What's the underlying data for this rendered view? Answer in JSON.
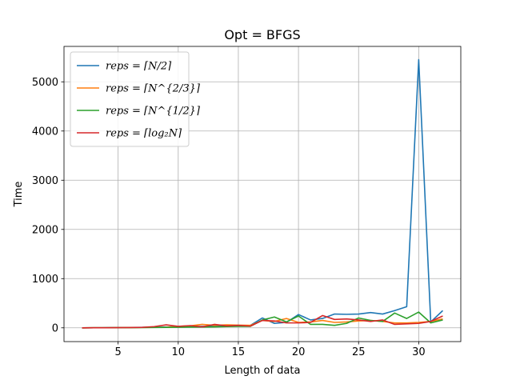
{
  "chart_data": {
    "type": "line",
    "title": "Opt = BFGS",
    "xlabel": "Length of data",
    "ylabel": "Time",
    "xlim": [
      0.5,
      33.5
    ],
    "ylim": [
      -280,
      5720
    ],
    "xticks": [
      5,
      10,
      15,
      20,
      25,
      30
    ],
    "yticks": [
      0,
      1000,
      2000,
      3000,
      4000,
      5000
    ],
    "grid": true,
    "legend_position": "top-left",
    "x": [
      2,
      3,
      4,
      5,
      6,
      7,
      8,
      9,
      10,
      11,
      12,
      13,
      14,
      15,
      16,
      17,
      18,
      19,
      20,
      21,
      22,
      23,
      24,
      25,
      26,
      27,
      28,
      29,
      30,
      31,
      32
    ],
    "series": [
      {
        "name": "reps = ⌈N/2⌉",
        "color": "#1f77b4",
        "values": [
          0,
          2,
          3,
          5,
          7,
          10,
          12,
          15,
          20,
          25,
          30,
          35,
          40,
          45,
          50,
          200,
          90,
          110,
          270,
          160,
          190,
          280,
          275,
          280,
          310,
          280,
          350,
          430,
          5450,
          120,
          350
        ]
      },
      {
        "name": "reps = ⌈N^{2/3}⌉",
        "color": "#ff7f0e",
        "values": [
          0,
          1,
          2,
          4,
          6,
          8,
          10,
          12,
          30,
          40,
          70,
          50,
          60,
          55,
          50,
          150,
          130,
          190,
          110,
          120,
          150,
          110,
          120,
          140,
          150,
          130,
          100,
          100,
          110,
          130,
          180
        ]
      },
      {
        "name": "reps = ⌈N^{1/2}⌉",
        "color": "#2ca02c",
        "values": [
          0,
          1,
          2,
          3,
          4,
          6,
          8,
          10,
          12,
          15,
          18,
          20,
          25,
          30,
          30,
          160,
          220,
          120,
          240,
          70,
          70,
          50,
          90,
          200,
          150,
          130,
          300,
          190,
          320,
          100,
          160
        ]
      },
      {
        "name": "reps = ⌈log₂N⌉",
        "color": "#d62728",
        "values": [
          0,
          1,
          2,
          4,
          6,
          10,
          25,
          60,
          30,
          45,
          20,
          70,
          40,
          50,
          35,
          150,
          140,
          100,
          100,
          110,
          250,
          170,
          180,
          160,
          130,
          160,
          70,
          80,
          90,
          130,
          240
        ]
      }
    ]
  }
}
